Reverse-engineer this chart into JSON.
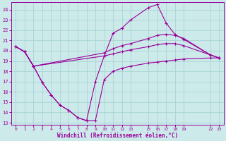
{
  "xlabel": "Windchill (Refroidissement éolien,°C)",
  "bg_color": "#cceaea",
  "grid_color": "#aad4d4",
  "line_color": "#990099",
  "x_ticks": [
    0,
    1,
    2,
    3,
    4,
    5,
    6,
    7,
    8,
    9,
    10,
    11,
    12,
    13,
    15,
    16,
    17,
    18,
    19,
    22,
    23
  ],
  "xlim": [
    -0.5,
    23.5
  ],
  "ylim": [
    12.8,
    24.7
  ],
  "y_ticks": [
    13,
    14,
    15,
    16,
    17,
    18,
    19,
    20,
    21,
    22,
    23,
    24
  ],
  "series": [
    {
      "x": [
        0,
        1,
        2,
        3,
        4,
        5,
        6,
        7,
        8,
        9,
        10,
        11,
        12,
        13,
        15,
        16,
        17,
        18,
        19,
        22,
        23
      ],
      "y": [
        20.4,
        19.9,
        18.5,
        16.9,
        15.7,
        14.7,
        14.2,
        13.5,
        13.2,
        13.2,
        17.2,
        18.0,
        18.3,
        18.5,
        18.8,
        18.9,
        19.0,
        19.1,
        19.2,
        19.3,
        19.3
      ]
    },
    {
      "x": [
        0,
        1,
        2,
        3,
        4,
        5,
        6,
        7,
        8,
        9,
        10,
        11,
        12,
        13,
        15,
        16,
        17,
        18,
        19,
        22,
        23
      ],
      "y": [
        20.4,
        19.9,
        18.5,
        16.9,
        15.7,
        14.7,
        14.2,
        13.5,
        13.2,
        17.0,
        19.5,
        21.7,
        22.2,
        23.0,
        24.2,
        24.5,
        22.7,
        21.6,
        21.1,
        19.6,
        19.3
      ]
    },
    {
      "x": [
        0,
        1,
        2,
        10,
        11,
        12,
        13,
        15,
        16,
        17,
        18,
        19,
        22,
        23
      ],
      "y": [
        20.4,
        19.9,
        18.5,
        19.8,
        20.2,
        20.5,
        20.7,
        21.2,
        21.5,
        21.6,
        21.5,
        21.2,
        19.6,
        19.3
      ]
    },
    {
      "x": [
        0,
        1,
        2,
        10,
        11,
        12,
        13,
        15,
        16,
        17,
        18,
        19,
        22,
        23
      ],
      "y": [
        20.4,
        19.9,
        18.5,
        19.5,
        19.7,
        19.9,
        20.1,
        20.4,
        20.6,
        20.7,
        20.7,
        20.5,
        19.6,
        19.3
      ]
    }
  ]
}
